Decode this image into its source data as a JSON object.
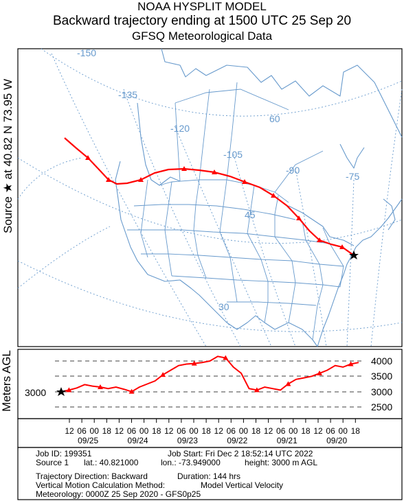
{
  "header": {
    "line1": "NOAA HYSPLIT MODEL",
    "line2": "Backward trajectory ending at 1500 UTC 25 Sep 20",
    "line3": "GFSQ Meteorological Data"
  },
  "source_label": "Source ★ at 40.82 N 73.95 W",
  "map": {
    "longitude_labels": [
      "-150",
      "-135",
      "-120",
      "-105",
      "-90",
      "-75",
      "60",
      "45",
      "30"
    ],
    "trajectory_color": "#ff0000",
    "map_line_color": "#6699cc",
    "source_marker": "star-icon"
  },
  "height_panel": {
    "ylabel": "Meters AGL",
    "source_height": "3000",
    "ticks": [
      "4000",
      "3500",
      "3000",
      "2500"
    ]
  },
  "time_axis": {
    "hours": [
      "12",
      "06",
      "00",
      "18",
      "12",
      "06",
      "00",
      "18",
      "12",
      "06",
      "00",
      "18",
      "12",
      "06",
      "00",
      "18",
      "12",
      "06",
      "00",
      "18",
      "12",
      "06",
      "00",
      "18"
    ],
    "dates": [
      "09/25",
      "09/24",
      "09/23",
      "09/22",
      "09/21",
      "09/20"
    ]
  },
  "chart_data": {
    "type": "line",
    "series": [
      {
        "values_agl_m": [
          3000,
          3050,
          3120,
          3230,
          3180,
          3150,
          3100,
          3150,
          3080,
          3000,
          3150,
          3250,
          3350,
          3550,
          3700,
          3850,
          3900,
          3920,
          3950,
          4000,
          4150,
          4100,
          3800,
          3600,
          3100,
          3050,
          3150,
          3100,
          3050,
          3250,
          3400,
          3450,
          3500,
          3600,
          3700,
          3850,
          3800,
          3900,
          3950
        ]
      }
    ],
    "ylim": [
      2500,
      4000
    ],
    "grid": true
  },
  "footer": {
    "job_id": "Job ID: 199351",
    "job_start": "Job Start: Fri Dec  2 18:52:14 UTC 2022",
    "source": "Source 1",
    "lat": "lat.: 40.821000",
    "lon": "lon.: -73.949000",
    "height": "height: 3000 m AGL",
    "direction": "Trajectory Direction: Backward",
    "duration": "Duration: 144 hrs",
    "vertical": "Vertical Motion Calculation Method:",
    "vertical_value": "Model Vertical Velocity",
    "meteorology": "Meteorology: 0000Z 25 Sep 2020 - GFS0p25"
  }
}
